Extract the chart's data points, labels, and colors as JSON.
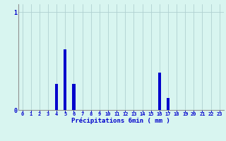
{
  "hours": [
    0,
    1,
    2,
    3,
    4,
    5,
    6,
    7,
    8,
    9,
    10,
    11,
    12,
    13,
    14,
    15,
    16,
    17,
    18,
    19,
    20,
    21,
    22,
    23
  ],
  "values": [
    0,
    0,
    0,
    0,
    0.27,
    0.62,
    0.27,
    0,
    0,
    0,
    0,
    0,
    0,
    0,
    0,
    0,
    0.38,
    0.12,
    0,
    0,
    0,
    0,
    0,
    0
  ],
  "bar_color": "#0000cc",
  "bg_color": "#d8f5f0",
  "grid_color": "#b0d0d0",
  "axis_color": "#909090",
  "text_color": "#0000cc",
  "xlabel": "Précipitations 6min ( mm )",
  "ylim": [
    0,
    1.08
  ],
  "yticks": [
    0,
    1
  ],
  "bar_width": 0.35
}
